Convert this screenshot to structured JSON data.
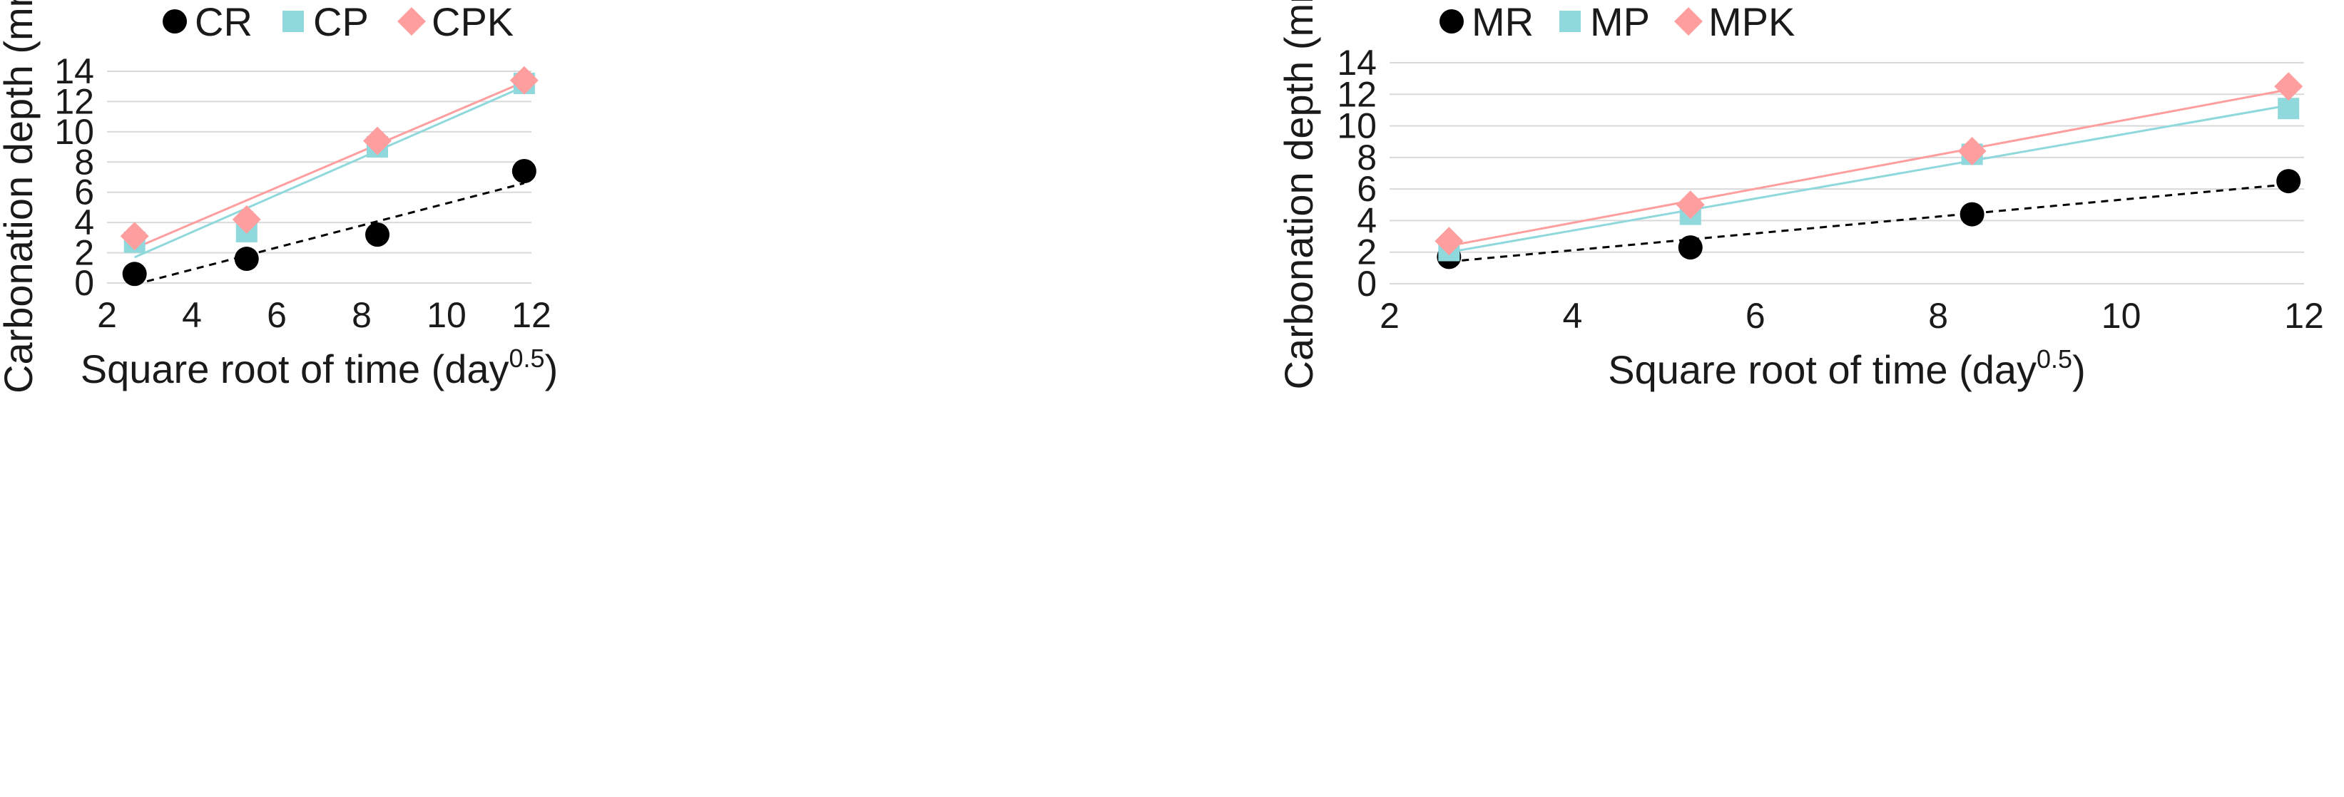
{
  "chart_data": [
    {
      "type": "scatter",
      "title": "",
      "xlabel": "Square root of time (day",
      "xlabel_sup": "0.5",
      "xlabel_close": ")",
      "ylabel": "Carbonation depth (mm)",
      "xlim": [
        2,
        12
      ],
      "ylim": [
        0,
        14
      ],
      "xticks": [
        2,
        4,
        6,
        8,
        10,
        12
      ],
      "yticks": [
        0,
        2,
        4,
        6,
        8,
        10,
        12,
        14
      ],
      "grid": "horizontal",
      "legend_position": "top",
      "series": [
        {
          "name": "CR",
          "marker": "circle",
          "color": "#000000",
          "trend_color": "#000000",
          "trend_style": "dashed",
          "x": [
            2.65,
            5.29,
            8.37,
            11.83
          ],
          "y": [
            0.6,
            1.6,
            3.2,
            7.4
          ],
          "err": [
            0.3,
            0.3,
            0.3,
            0.3
          ],
          "trend": [
            [
              2.65,
              -0.1
            ],
            [
              11.83,
              6.6
            ]
          ]
        },
        {
          "name": "CP",
          "marker": "square",
          "color": "#8fd8dc",
          "trend_color": "#8fd8dc",
          "trend_style": "solid",
          "x": [
            2.65,
            5.29,
            8.37,
            11.83
          ],
          "y": [
            2.7,
            3.4,
            9.0,
            13.2
          ],
          "err": [
            0.3,
            0.3,
            0.3,
            0.3
          ],
          "trend": [
            [
              2.65,
              1.7
            ],
            [
              11.83,
              13.0
            ]
          ]
        },
        {
          "name": "CPK",
          "marker": "diamond",
          "color": "#ff9e9e",
          "trend_color": "#ff9e9e",
          "trend_style": "solid",
          "x": [
            2.65,
            5.29,
            8.37,
            11.83
          ],
          "y": [
            3.1,
            4.2,
            9.4,
            13.4
          ],
          "err": [
            0.5,
            0.5,
            0.5,
            0.5
          ],
          "trend": [
            [
              2.65,
              2.3
            ],
            [
              11.83,
              13.3
            ]
          ]
        }
      ]
    },
    {
      "type": "scatter",
      "title": "",
      "xlabel": "Square root of time (day",
      "xlabel_sup": "0.5",
      "xlabel_close": ")",
      "ylabel": "Carbonation depth (mm)",
      "xlim": [
        2,
        12
      ],
      "ylim": [
        0,
        14
      ],
      "xticks": [
        2,
        4,
        6,
        8,
        10,
        12
      ],
      "yticks": [
        0,
        2,
        4,
        6,
        8,
        10,
        12,
        14
      ],
      "grid": "horizontal",
      "legend_position": "top",
      "series": [
        {
          "name": "MR",
          "marker": "circle",
          "color": "#000000",
          "trend_color": "#000000",
          "trend_style": "dashed",
          "x": [
            2.65,
            5.29,
            8.37,
            11.83
          ],
          "y": [
            1.7,
            2.3,
            4.4,
            6.5
          ],
          "err": [
            0.3,
            0.4,
            0.5,
            0.5
          ],
          "trend": [
            [
              2.65,
              1.4
            ],
            [
              11.83,
              6.3
            ]
          ]
        },
        {
          "name": "MP",
          "marker": "square",
          "color": "#8fd8dc",
          "trend_color": "#8fd8dc",
          "trend_style": "solid",
          "x": [
            2.65,
            5.29,
            8.37,
            11.83
          ],
          "y": [
            2.1,
            4.4,
            8.2,
            11.1
          ],
          "err": [
            0.3,
            0.3,
            0.6,
            0.3
          ],
          "trend": [
            [
              2.65,
              2.0
            ],
            [
              11.83,
              11.3
            ]
          ]
        },
        {
          "name": "MPK",
          "marker": "diamond",
          "color": "#ff9e9e",
          "trend_color": "#ff9e9e",
          "trend_style": "solid",
          "x": [
            2.65,
            5.29,
            8.37,
            11.83
          ],
          "y": [
            2.7,
            5.0,
            8.4,
            12.5
          ],
          "err": [
            0.3,
            0.3,
            0.3,
            0.4
          ],
          "trend": [
            [
              2.65,
              2.4
            ],
            [
              11.83,
              12.3
            ]
          ]
        }
      ]
    }
  ]
}
